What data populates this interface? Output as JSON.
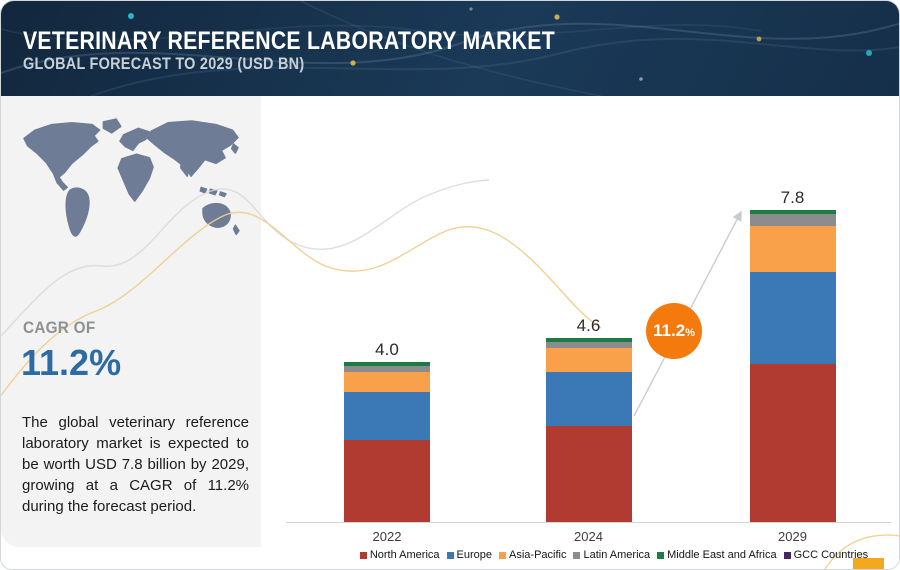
{
  "header": {
    "title": "VETERINARY REFERENCE LABORATORY MARKET",
    "subtitle": "GLOBAL FORECAST TO 2029 (USD BN)"
  },
  "side_panel": {
    "cagr_label": "CAGR OF",
    "cagr_value": "11.2%",
    "description": "The global veterinary reference laboratory market is expected to be worth USD 7.8 billion by 2029, growing at a CAGR of 11.2% during the forecast period."
  },
  "growth_badge": {
    "value": "11.2",
    "suffix": "%"
  },
  "chart_data": {
    "type": "bar",
    "stacked": true,
    "unit": "USD BN",
    "title": "Veterinary Reference Laboratory Market, Global Forecast to 2029 (USD BN)",
    "categories": [
      "2022",
      "2024",
      "2029"
    ],
    "value_labels": [
      "4.0",
      "4.6",
      "7.8"
    ],
    "totals": [
      4.0,
      4.6,
      7.8
    ],
    "series": [
      {
        "name": "North America",
        "color": "#b23b31",
        "values": [
          2.05,
          2.4,
          3.95
        ]
      },
      {
        "name": "Europe",
        "color": "#3a78b6",
        "values": [
          1.2,
          1.35,
          2.3
        ]
      },
      {
        "name": "Asia-Pacific",
        "color": "#f9a04b",
        "values": [
          0.5,
          0.6,
          1.15
        ]
      },
      {
        "name": "Latin America",
        "color": "#8c8c8c",
        "values": [
          0.15,
          0.15,
          0.3
        ]
      },
      {
        "name": "Middle East and Africa",
        "color": "#1c7c43",
        "values": [
          0.1,
          0.1,
          0.1
        ]
      },
      {
        "name": "GCC Countries",
        "color": "#44295e",
        "values": [
          0,
          0,
          0
        ]
      }
    ],
    "legend_position": "bottom",
    "grid": false,
    "xlabel": "",
    "ylabel": "",
    "ylim": [
      0,
      8
    ]
  },
  "accent_colors": {
    "badge_orange": "#f57a0e",
    "accent_yellow": "#f3a81e",
    "cagr_blue": "#2d6ba3",
    "axis_gray": "#d4d4d4"
  }
}
